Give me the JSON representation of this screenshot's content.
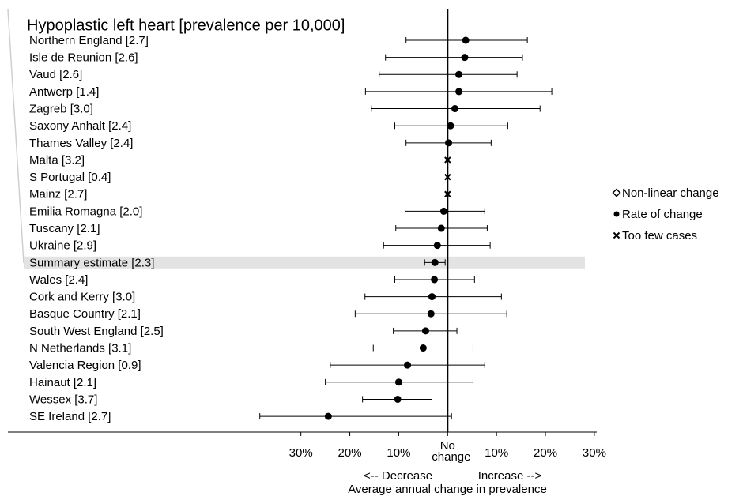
{
  "chart_data": {
    "type": "forest",
    "title": "Hypoplastic left heart [prevalence per 10,000]",
    "rows": [
      {
        "label": "Northern England [2.7]",
        "value": 3.7,
        "low": -8.5,
        "high": 16.3,
        "marker": "circle"
      },
      {
        "label": "Isle de Reunion [2.6]",
        "value": 3.5,
        "low": -12.7,
        "high": 15.3,
        "marker": "circle"
      },
      {
        "label": "Vaud [2.6]",
        "value": 2.3,
        "low": -14.0,
        "high": 14.2,
        "marker": "circle"
      },
      {
        "label": "Antwerp [1.4]",
        "value": 2.3,
        "low": -16.8,
        "high": 21.3,
        "marker": "circle"
      },
      {
        "label": "Zagreb [3.0]",
        "value": 1.5,
        "low": -15.6,
        "high": 18.9,
        "marker": "circle"
      },
      {
        "label": "Saxony Anhalt [2.4]",
        "value": 0.6,
        "low": -10.8,
        "high": 12.3,
        "marker": "circle"
      },
      {
        "label": "Thames Valley [2.4]",
        "value": 0.2,
        "low": -8.5,
        "high": 8.9,
        "marker": "circle"
      },
      {
        "label": "Malta [3.2]",
        "value": 0,
        "marker": "cross"
      },
      {
        "label": "S Portugal [0.4]",
        "value": 0,
        "marker": "cross"
      },
      {
        "label": "Mainz [2.7]",
        "value": 0,
        "marker": "cross"
      },
      {
        "label": "Emilia Romagna [2.0]",
        "value": -0.8,
        "low": -8.7,
        "high": 7.6,
        "marker": "circle"
      },
      {
        "label": "Tuscany [2.1]",
        "value": -1.3,
        "low": -10.6,
        "high": 8.1,
        "marker": "circle"
      },
      {
        "label": "Ukraine [2.9]",
        "value": -2.1,
        "low": -13.1,
        "high": 8.7,
        "marker": "circle"
      },
      {
        "label": "Summary estimate [2.3]",
        "value": -2.6,
        "low": -4.7,
        "high": -0.5,
        "marker": "circle",
        "highlight": true
      },
      {
        "label": "Wales [2.4]",
        "value": -2.7,
        "low": -10.8,
        "high": 5.5,
        "marker": "circle"
      },
      {
        "label": "Cork and Kerry [3.0]",
        "value": -3.2,
        "low": -16.9,
        "high": 11.0,
        "marker": "circle"
      },
      {
        "label": "Basque Country [2.1]",
        "value": -3.4,
        "low": -18.9,
        "high": 12.1,
        "marker": "circle"
      },
      {
        "label": "South West England [2.5]",
        "value": -4.5,
        "low": -11.1,
        "high": 1.9,
        "marker": "circle"
      },
      {
        "label": "N Netherlands [3.1]",
        "value": -5.0,
        "low": -15.2,
        "high": 5.2,
        "marker": "circle"
      },
      {
        "label": "Valencia Region [0.9]",
        "value": -8.2,
        "low": -24.0,
        "high": 7.6,
        "marker": "circle"
      },
      {
        "label": "Hainaut [2.1]",
        "value": -10.0,
        "low": -25.0,
        "high": 5.2,
        "marker": "circle"
      },
      {
        "label": "Wessex [3.7]",
        "value": -10.2,
        "low": -17.4,
        "high": -3.2,
        "marker": "circle"
      },
      {
        "label": "SE Ireland [2.7]",
        "value": -24.4,
        "low": -38.4,
        "high": 0.8,
        "marker": "circle"
      }
    ],
    "xlim": [
      -39,
      30.5
    ],
    "xticks": [
      {
        "value": -30,
        "label": "30%"
      },
      {
        "value": -20,
        "label": "20%"
      },
      {
        "value": -10,
        "label": "10%"
      },
      {
        "value": 0,
        "label": "No change"
      },
      {
        "value": 10,
        "label": "10%"
      },
      {
        "value": 20,
        "label": "20%"
      },
      {
        "value": 30,
        "label": "30%"
      }
    ],
    "direction_labels": [
      "<-- Decrease",
      "Increase -->"
    ],
    "xlabel": "Average annual change in prevalence",
    "legend": [
      {
        "label": "Non-linear change",
        "marker": "diamond"
      },
      {
        "label": "Rate of change",
        "marker": "circle"
      },
      {
        "label": "Too few cases",
        "marker": "cross"
      }
    ],
    "color": "#000000"
  }
}
